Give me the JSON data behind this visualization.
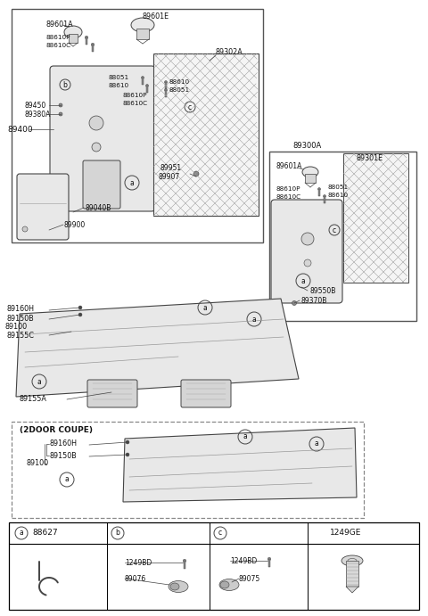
{
  "bg_color": "#ffffff",
  "line_color": "#444444",
  "text_color": "#111111",
  "gray1": "#e8e8e8",
  "gray2": "#d5d5d5",
  "gray3": "#aaaaaa",
  "hatch_color": "#999999",
  "legend_a": "88627",
  "legend_b1": "1249BD",
  "legend_b2": "89076",
  "legend_c1": "1249BD",
  "legend_c2": "89075",
  "legend_d": "1249GE"
}
